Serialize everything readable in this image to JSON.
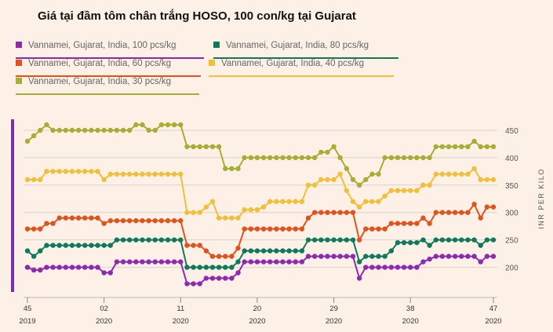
{
  "title": "Giá tại đầm tôm chân trắng HOSO, 100 con/kg tại Gujarat",
  "colors": {
    "background": "#fdf1e7",
    "accent_bar": "#7b2fa8",
    "grid": "#d9d2cb"
  },
  "chart_data": {
    "type": "line",
    "title": "Giá tại đầm tôm chân trắng HOSO, 100 con/kg tại Gujarat",
    "ylabel": "INR PER KILO",
    "xlabel": "",
    "ylim": [
      155,
      470
    ],
    "ytick_values": [
      200,
      250,
      300,
      350,
      400,
      450
    ],
    "ytick_labels": [
      "200",
      "250",
      "300",
      "350",
      "400",
      "450"
    ],
    "grid": "horizontal",
    "legend_position": "top",
    "x": [
      0,
      1,
      2,
      3,
      4,
      5,
      6,
      7,
      8,
      9,
      10,
      11,
      12,
      13,
      14,
      15,
      16,
      17,
      18,
      19,
      20,
      21,
      22,
      23,
      24,
      25,
      26,
      27,
      28,
      29,
      30,
      31,
      32,
      33,
      34,
      35,
      36,
      37,
      38,
      39,
      40,
      41,
      42,
      43,
      44,
      45,
      46,
      47,
      48,
      49,
      50,
      51,
      52,
      53,
      54,
      55,
      56,
      57,
      58,
      59,
      60,
      61,
      62,
      63,
      64,
      65,
      66,
      67,
      68,
      69,
      70,
      71,
      72,
      73
    ],
    "x_ticks": [
      {
        "x": 0,
        "week": "45",
        "year": "2019"
      },
      {
        "x": 12,
        "week": "02",
        "year": "2020"
      },
      {
        "x": 24,
        "week": "11",
        "year": "2020"
      },
      {
        "x": 36,
        "week": "20",
        "year": "2020"
      },
      {
        "x": 48,
        "week": "29",
        "year": "2020"
      },
      {
        "x": 60,
        "week": "38",
        "year": "2020"
      },
      {
        "x": 73,
        "week": "47",
        "year": "2020"
      }
    ],
    "series": [
      {
        "name": "Vannamei, Gujarat, India, 100 pcs/kg",
        "color": "#8e2ab0",
        "values": [
          200,
          195,
          195,
          200,
          200,
          200,
          200,
          200,
          200,
          200,
          200,
          200,
          190,
          190,
          210,
          210,
          210,
          210,
          210,
          210,
          210,
          210,
          210,
          210,
          210,
          170,
          170,
          170,
          180,
          180,
          180,
          180,
          180,
          190,
          210,
          210,
          210,
          210,
          210,
          210,
          210,
          210,
          210,
          210,
          220,
          220,
          220,
          220,
          220,
          220,
          220,
          220,
          180,
          200,
          200,
          200,
          200,
          200,
          200,
          200,
          200,
          200,
          210,
          215,
          220,
          220,
          220,
          220,
          220,
          220,
          220,
          210,
          220,
          220
        ]
      },
      {
        "name": "Vannamei, Gujarat, India, 80 pcs/kg",
        "color": "#0e7a5c",
        "values": [
          230,
          220,
          230,
          240,
          240,
          240,
          240,
          240,
          240,
          240,
          240,
          240,
          240,
          240,
          250,
          250,
          250,
          250,
          250,
          250,
          250,
          250,
          250,
          250,
          250,
          200,
          200,
          200,
          200,
          200,
          200,
          200,
          200,
          210,
          230,
          230,
          230,
          230,
          230,
          230,
          230,
          230,
          230,
          230,
          250,
          250,
          250,
          250,
          250,
          250,
          250,
          250,
          210,
          220,
          220,
          220,
          220,
          230,
          245,
          245,
          245,
          245,
          250,
          240,
          250,
          250,
          250,
          250,
          250,
          250,
          250,
          240,
          250,
          250
        ]
      },
      {
        "name": "Vannamei, Gujarat, India, 60 pcs/kg",
        "color": "#e0531e",
        "values": [
          270,
          270,
          270,
          280,
          280,
          290,
          290,
          290,
          290,
          290,
          290,
          290,
          280,
          285,
          285,
          285,
          285,
          285,
          285,
          285,
          285,
          285,
          285,
          285,
          285,
          240,
          240,
          240,
          230,
          220,
          220,
          220,
          220,
          235,
          270,
          270,
          270,
          270,
          270,
          270,
          270,
          270,
          270,
          270,
          290,
          300,
          300,
          300,
          300,
          300,
          300,
          300,
          250,
          270,
          270,
          270,
          270,
          280,
          280,
          280,
          280,
          280,
          290,
          280,
          300,
          300,
          300,
          300,
          300,
          300,
          315,
          290,
          310,
          310
        ]
      },
      {
        "name": "Vannamei, Gujarat, India, 40 pcs/kg",
        "color": "#f2bf3a",
        "values": [
          360,
          360,
          360,
          375,
          375,
          375,
          375,
          375,
          375,
          375,
          375,
          375,
          360,
          370,
          370,
          370,
          370,
          370,
          370,
          370,
          370,
          370,
          370,
          370,
          370,
          300,
          300,
          300,
          310,
          320,
          290,
          290,
          290,
          290,
          305,
          305,
          305,
          310,
          320,
          320,
          320,
          320,
          320,
          320,
          350,
          350,
          360,
          360,
          360,
          370,
          340,
          320,
          310,
          320,
          320,
          320,
          330,
          340,
          340,
          340,
          340,
          340,
          350,
          350,
          370,
          370,
          370,
          370,
          370,
          370,
          380,
          360,
          360,
          360
        ]
      },
      {
        "name": "Vannamei, Gujarat, India, 30 pcs/kg",
        "color": "#a9ad33",
        "values": [
          430,
          440,
          450,
          460,
          450,
          450,
          450,
          450,
          450,
          450,
          450,
          450,
          450,
          450,
          450,
          450,
          450,
          460,
          460,
          450,
          450,
          460,
          460,
          460,
          460,
          420,
          420,
          420,
          420,
          420,
          420,
          380,
          380,
          380,
          400,
          400,
          400,
          400,
          400,
          400,
          400,
          400,
          400,
          400,
          400,
          400,
          410,
          410,
          420,
          400,
          380,
          360,
          350,
          360,
          370,
          370,
          400,
          400,
          400,
          400,
          400,
          400,
          400,
          400,
          420,
          420,
          420,
          420,
          420,
          420,
          430,
          420,
          420,
          420
        ]
      }
    ]
  }
}
